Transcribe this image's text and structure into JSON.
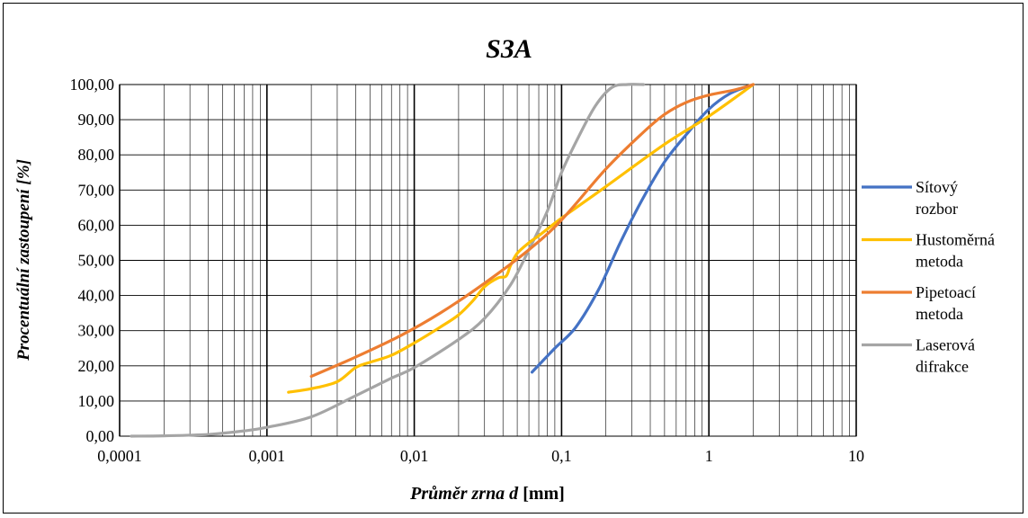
{
  "chart_data": {
    "type": "line",
    "title": "S3A",
    "xlabel_italic": "Průměr zrna d",
    "xlabel_unit": " [mm]",
    "ylabel": "Procentuální zastoupení [%]",
    "x_scale": "log",
    "xlim": [
      0.0001,
      10
    ],
    "ylim": [
      0,
      100
    ],
    "x_ticks": [
      "0,0001",
      "0,001",
      "0,01",
      "0,1",
      "1",
      "10"
    ],
    "y_ticks": [
      "0,00",
      "10,00",
      "20,00",
      "30,00",
      "40,00",
      "50,00",
      "60,00",
      "70,00",
      "80,00",
      "90,00",
      "100,00"
    ],
    "grid": true,
    "legend_position": "right",
    "series": [
      {
        "name_lines": [
          "Sítový",
          "rozbor"
        ],
        "color": "#4472C4",
        "points": [
          [
            0.063,
            18.2
          ],
          [
            0.09,
            25
          ],
          [
            0.125,
            31
          ],
          [
            0.18,
            42
          ],
          [
            0.25,
            55
          ],
          [
            0.35,
            67
          ],
          [
            0.5,
            78
          ],
          [
            0.71,
            86
          ],
          [
            1.0,
            93
          ],
          [
            1.4,
            97.5
          ],
          [
            2.0,
            100
          ]
        ]
      },
      {
        "name_lines": [
          "Hustoměrná",
          "metoda"
        ],
        "color": "#FFC000",
        "points": [
          [
            0.0014,
            12.5
          ],
          [
            0.002,
            13.5
          ],
          [
            0.003,
            15.5
          ],
          [
            0.004,
            19.5
          ],
          [
            0.005,
            21
          ],
          [
            0.007,
            23
          ],
          [
            0.01,
            26.5
          ],
          [
            0.015,
            31
          ],
          [
            0.02,
            34.5
          ],
          [
            0.025,
            38.5
          ],
          [
            0.03,
            42.5
          ],
          [
            0.037,
            45
          ],
          [
            0.042,
            45.5
          ],
          [
            0.045,
            48.5
          ],
          [
            0.05,
            52
          ],
          [
            0.06,
            55
          ],
          [
            0.07,
            57
          ],
          [
            0.1,
            62
          ],
          [
            0.2,
            71
          ],
          [
            0.5,
            83
          ],
          [
            1.0,
            91
          ],
          [
            2.0,
            100
          ]
        ]
      },
      {
        "name_lines": [
          "Pipetoací",
          "metoda"
        ],
        "color": "#ED7D31",
        "points": [
          [
            0.002,
            17
          ],
          [
            0.004,
            22.5
          ],
          [
            0.008,
            28.5
          ],
          [
            0.015,
            35
          ],
          [
            0.03,
            43.5
          ],
          [
            0.06,
            53
          ],
          [
            0.1,
            61.5
          ],
          [
            0.2,
            76
          ],
          [
            0.35,
            86
          ],
          [
            0.5,
            91.5
          ],
          [
            0.71,
            95
          ],
          [
            1.0,
            97
          ],
          [
            1.5,
            98.5
          ],
          [
            2.0,
            100
          ]
        ]
      },
      {
        "name_lines": [
          "Laserová",
          "difrakce"
        ],
        "color": "#A5A5A5",
        "points": [
          [
            0.00012,
            0
          ],
          [
            0.0002,
            0.1
          ],
          [
            0.0004,
            0.5
          ],
          [
            0.0007,
            1.5
          ],
          [
            0.001,
            2.5
          ],
          [
            0.002,
            5.5
          ],
          [
            0.004,
            11.5
          ],
          [
            0.007,
            16.5
          ],
          [
            0.01,
            19.5
          ],
          [
            0.02,
            27.5
          ],
          [
            0.03,
            33.5
          ],
          [
            0.045,
            43
          ],
          [
            0.06,
            53
          ],
          [
            0.08,
            64
          ],
          [
            0.1,
            75
          ],
          [
            0.13,
            85
          ],
          [
            0.17,
            94
          ],
          [
            0.22,
            99.2
          ],
          [
            0.28,
            100
          ],
          [
            0.36,
            100
          ]
        ]
      }
    ]
  }
}
